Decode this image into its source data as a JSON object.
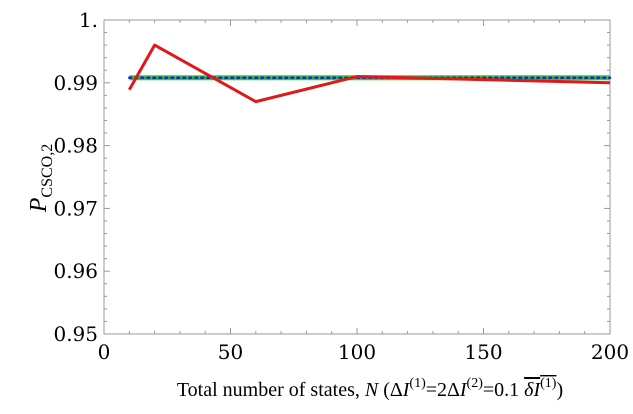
{
  "chart_data": {
    "type": "line",
    "title": "",
    "ylabel_main": "P",
    "ylabel_sub": "CSCO,2",
    "xlabel": {
      "prefix": "Total number of states, ",
      "var": "N",
      "open": " (Δ",
      "I1": "I",
      "sup1": "(1)",
      "mid1": "=2Δ",
      "I2": "I",
      "sup2": "(2)",
      "mid2": "=0.1 ",
      "barexpr_delta": "δ",
      "barexpr_I": "I",
      "barexpr_sup": "(1)",
      "close": ")"
    },
    "xlim": [
      0,
      200
    ],
    "ylim": [
      0.95,
      1.0
    ],
    "xticks": [
      0,
      50,
      100,
      150,
      200
    ],
    "xtick_labels": [
      "0",
      "50",
      "100",
      "150",
      "200"
    ],
    "yticks": [
      0.95,
      0.96,
      0.97,
      0.98,
      0.99,
      1.0
    ],
    "ytick_labels": [
      "0.95",
      "0.96",
      "0.97",
      "0.98",
      "0.99",
      "1."
    ],
    "series": [
      {
        "color": "#32cd32",
        "style": "solid-thick",
        "x": [
          10,
          200
        ],
        "y": [
          0.9908,
          0.9908
        ]
      },
      {
        "color": "#2323d0",
        "style": "dotted",
        "x": [
          10,
          200
        ],
        "y": [
          0.9908,
          0.9908
        ]
      },
      {
        "color": "#e01818",
        "style": "solid",
        "x": [
          10,
          20,
          60,
          100,
          200
        ],
        "y": [
          0.9889,
          0.996,
          0.987,
          0.991,
          0.99
        ]
      }
    ]
  }
}
